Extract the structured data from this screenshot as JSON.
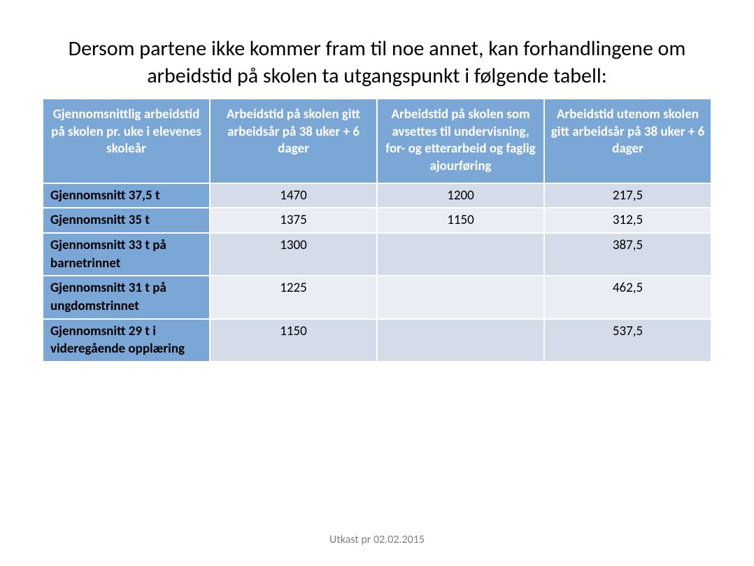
{
  "title": "Dersom partene ikke kommer fram til noe annet, kan forhandlingene om arbeidstid på skolen ta utgangspunkt i følgende tabell:",
  "footer": "Utkast pr 02.02.2015",
  "table": {
    "type": "table",
    "header_bg_color": "#7ba7d7",
    "header_text_color": "#ffffff",
    "label_bg_color": "#7ba7d7",
    "row_alt_a_color": "#d4dbe9",
    "row_alt_b_color": "#eaedf4",
    "border_color": "#ffffff",
    "header_fontsize": 19,
    "cell_fontsize": 19,
    "columns": [
      "Gjennomsnittlig arbeidstid på skolen pr. uke i elevenes skoleår",
      "Arbeidstid på skolen gitt arbeidsår på 38 uker + 6 dager",
      "Arbeidstid på skolen som avsettes til undervisning, for- og etterarbeid og faglig ajourføring",
      "Arbeidstid utenom skolen\ngitt arbeidsår på 38 uker + 6 dager"
    ],
    "rows": [
      {
        "label": "Gjennomsnitt 37,5 t",
        "c1": "1470",
        "c2": "1200",
        "c3": "217,5",
        "band": "a"
      },
      {
        "label": "Gjennomsnitt 35 t",
        "c1": "1375",
        "c2": "1150",
        "c3": "312,5",
        "band": "b"
      },
      {
        "label": "Gjennomsnitt 33 t på barnetrinnet",
        "c1": "1300",
        "c2": "",
        "c3": "387,5",
        "band": "a"
      },
      {
        "label": "Gjennomsnitt 31 t på ungdomstrinnet",
        "c1": "1225",
        "c2": "",
        "c3": "462,5",
        "band": "b"
      },
      {
        "label": "Gjennomsnitt 29 t i videregående opplæring",
        "c1": "1150",
        "c2": "",
        "c3": "537,5",
        "band": "a"
      }
    ]
  }
}
